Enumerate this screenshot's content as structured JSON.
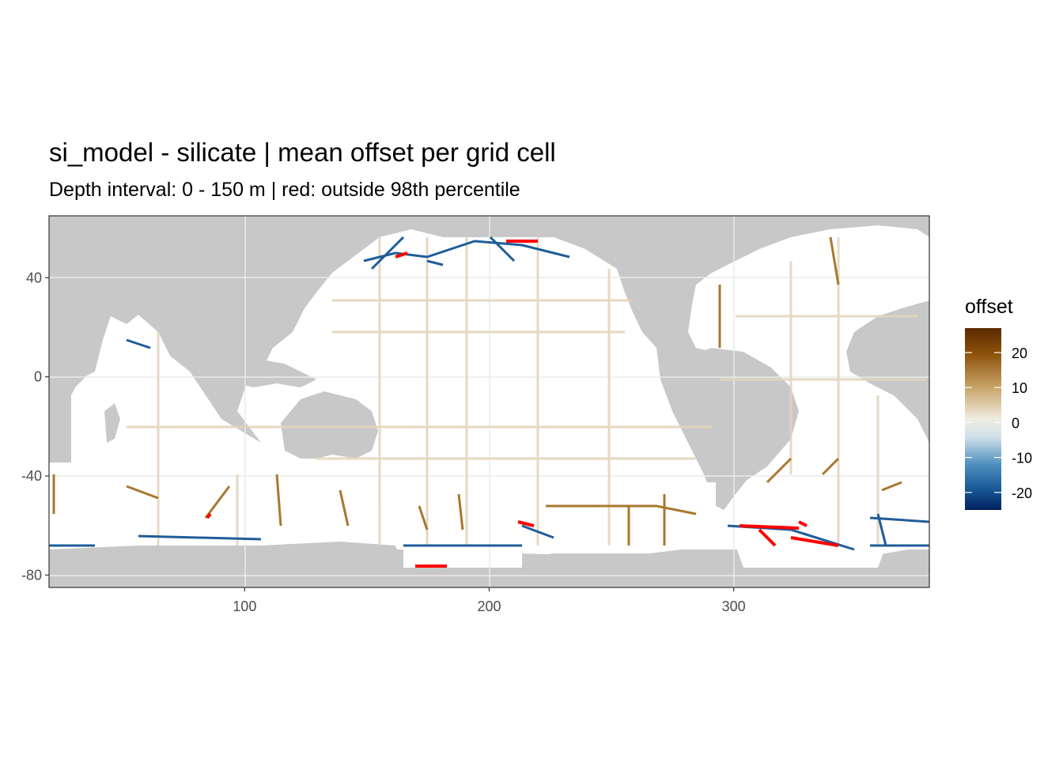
{
  "title": "si_model - silicate  | mean offset per grid cell",
  "subtitle": "Depth interval: 0 - 150 m | red: outside 98th percentile",
  "chart_data": {
    "type": "heatmap",
    "x_ticks": [
      "100",
      "200",
      "300"
    ],
    "x_tick_values": [
      100,
      200,
      300
    ],
    "y_ticks": [
      "40",
      "0",
      "-40",
      "-80"
    ],
    "y_tick_values": [
      40,
      0,
      -40,
      -80
    ],
    "xlim": [
      20,
      380
    ],
    "ylim": [
      -85,
      65
    ],
    "legend": {
      "title": "offset",
      "labels": [
        "20",
        "10",
        "0",
        "-10",
        "-20"
      ],
      "values": [
        20,
        10,
        0,
        -10,
        -20
      ],
      "range": [
        -25,
        27
      ],
      "colors": [
        "#67001f",
        "#8c510a",
        "#bf812d",
        "#dfc27d",
        "#f6e8c3",
        "#f5f5f5",
        "#c7e0ed",
        "#4393c3",
        "#2166ac",
        "#053061"
      ],
      "outlier_color": "#ff0000"
    },
    "land_color": "#c8c8c8",
    "ocean_color": "#ffffff"
  }
}
